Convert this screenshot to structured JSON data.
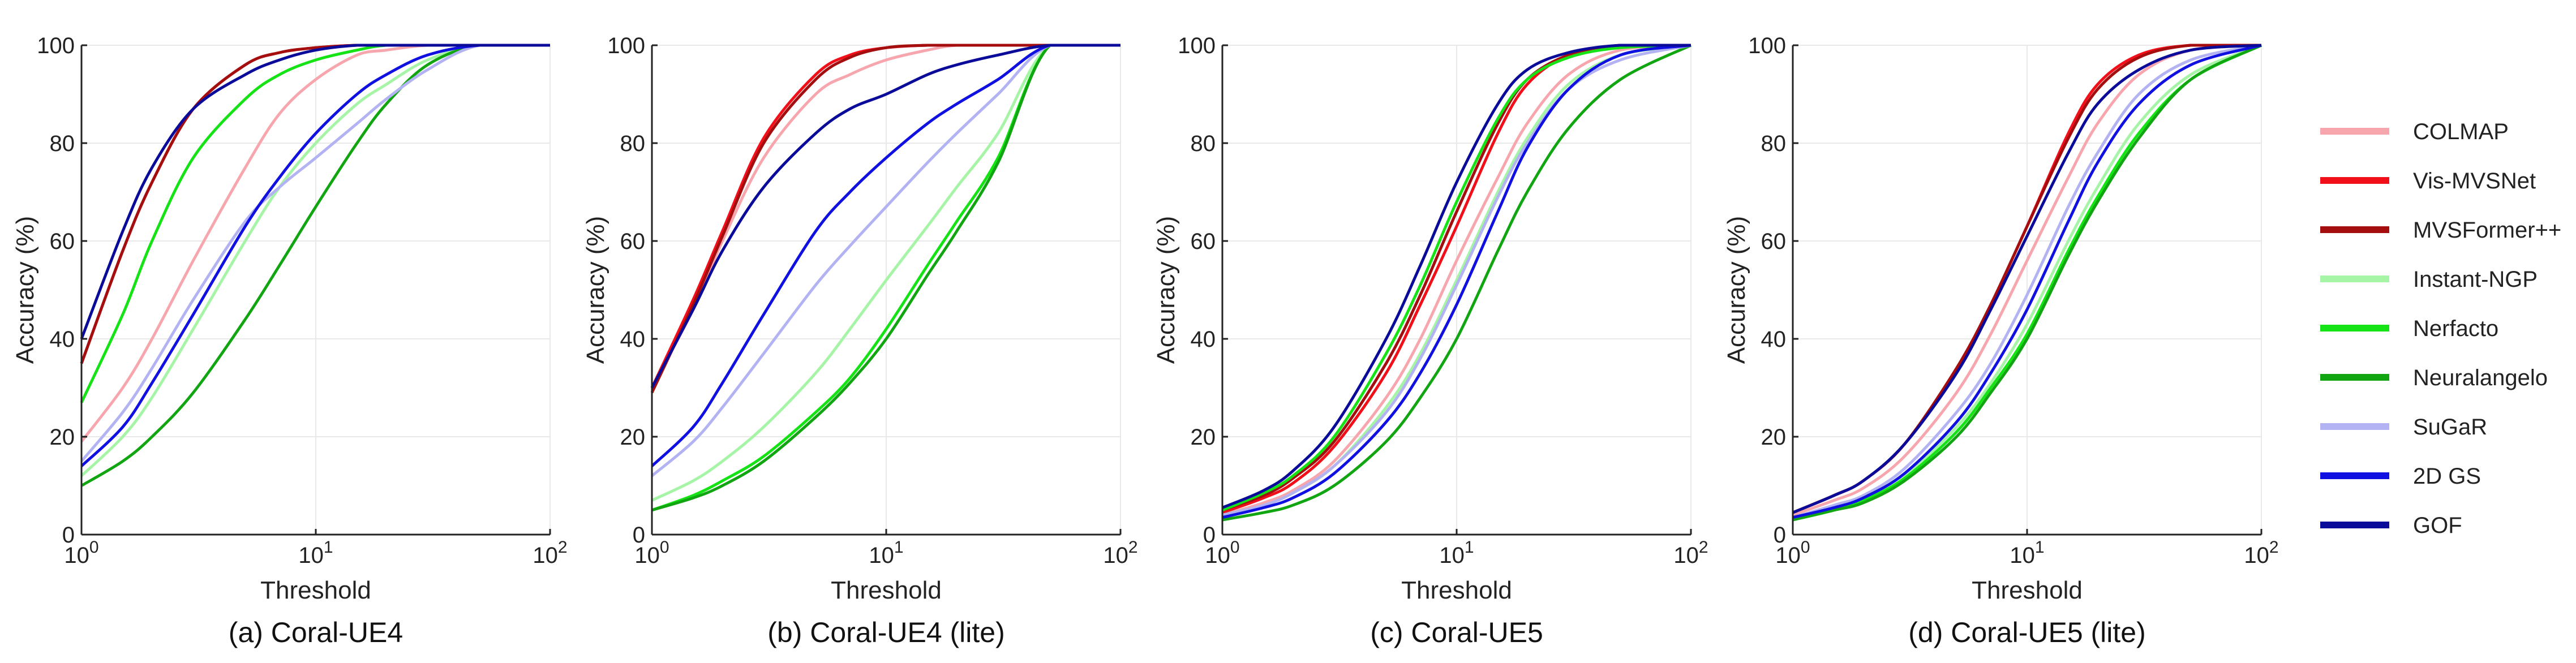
{
  "chart_data": [
    {
      "type": "line",
      "title": "(a) Coral-UE4",
      "xlabel": "Threshold",
      "ylabel": "Accuracy (%)",
      "xscale": "log",
      "xlim": [
        1,
        100
      ],
      "ylim": [
        0,
        100
      ],
      "xticks": [
        "10^0",
        "10^1",
        "10^2"
      ],
      "yticks": [
        0,
        20,
        40,
        60,
        80,
        100
      ],
      "x": [
        1,
        1.5,
        2,
        3,
        5,
        7,
        10,
        15,
        20,
        30,
        50,
        100
      ],
      "series": [
        {
          "name": "COLMAP",
          "values": [
            19,
            30,
            40,
            56,
            75,
            86,
            93,
            98,
            99,
            100,
            100,
            100
          ]
        },
        {
          "name": "Vis-MVSNet",
          "values": [
            35,
            58,
            72,
            87,
            96,
            98.5,
            99.5,
            100,
            100,
            100,
            100,
            100
          ]
        },
        {
          "name": "MVSFormer++",
          "values": [
            35,
            58,
            72,
            87,
            96,
            98.5,
            99.5,
            100,
            100,
            100,
            100,
            100
          ]
        },
        {
          "name": "Instant-NGP",
          "values": [
            12,
            20,
            28,
            42,
            60,
            71,
            80,
            88,
            92,
            97,
            100,
            100
          ]
        },
        {
          "name": "Nerfacto",
          "values": [
            27,
            45,
            60,
            77,
            89,
            94,
            97,
            99,
            100,
            100,
            100,
            100
          ]
        },
        {
          "name": "Neuralangelo",
          "values": [
            10,
            15,
            20,
            29,
            44,
            55,
            67,
            80,
            88,
            96,
            100,
            100
          ]
        },
        {
          "name": "SuGaR",
          "values": [
            15,
            25,
            34,
            48,
            64,
            71,
            77,
            84,
            89,
            95,
            100,
            100
          ]
        },
        {
          "name": "2D GS",
          "values": [
            14,
            22,
            31,
            45,
            63,
            73,
            82,
            90,
            94,
            98,
            100,
            100
          ]
        },
        {
          "name": "GOF",
          "values": [
            40,
            62,
            75,
            87,
            94,
            97,
            99,
            100,
            100,
            100,
            100,
            100
          ]
        }
      ]
    },
    {
      "type": "line",
      "title": "(b) Coral-UE4 (lite)",
      "xlabel": "Threshold",
      "ylabel": "Accuracy (%)",
      "xscale": "log",
      "xlim": [
        1,
        100
      ],
      "ylim": [
        0,
        100
      ],
      "xticks": [
        "10^0",
        "10^1",
        "10^2"
      ],
      "yticks": [
        0,
        20,
        40,
        60,
        80,
        100
      ],
      "x": [
        1,
        1.5,
        2,
        3,
        5,
        7,
        10,
        15,
        20,
        30,
        50,
        100
      ],
      "series": [
        {
          "name": "COLMAP",
          "values": [
            30,
            46,
            60,
            77,
            90,
            94,
            97,
            99,
            100,
            100,
            100,
            100
          ]
        },
        {
          "name": "Vis-MVSNet",
          "values": [
            30,
            48,
            62,
            81,
            94,
            98,
            99.5,
            100,
            100,
            100,
            100,
            100
          ]
        },
        {
          "name": "MVSFormer++",
          "values": [
            29,
            47,
            61,
            80,
            93,
            97.5,
            99.5,
            100,
            100,
            100,
            100,
            100
          ]
        },
        {
          "name": "Instant-NGP",
          "values": [
            7,
            11,
            15,
            22,
            33,
            42,
            52,
            63,
            71,
            82,
            100,
            100
          ]
        },
        {
          "name": "Nerfacto",
          "values": [
            5,
            8,
            11,
            16,
            25,
            32,
            42,
            55,
            64,
            77,
            100,
            100
          ]
        },
        {
          "name": "Neuralangelo",
          "values": [
            5,
            7.5,
            10,
            15,
            24,
            31,
            40,
            53,
            62,
            76,
            100,
            100
          ]
        },
        {
          "name": "SuGaR",
          "values": [
            12,
            19,
            26,
            37,
            51,
            59,
            67,
            76,
            82,
            90,
            100,
            100
          ]
        },
        {
          "name": "2D GS",
          "values": [
            14,
            22,
            31,
            45,
            62,
            70,
            77,
            84,
            88,
            93,
            100,
            100
          ]
        },
        {
          "name": "GOF",
          "values": [
            30,
            46,
            58,
            71,
            82,
            87,
            90,
            94,
            96,
            98,
            100,
            100
          ]
        }
      ]
    },
    {
      "type": "line",
      "title": "(c) Coral-UE5",
      "xlabel": "Threshold",
      "ylabel": "Accuracy (%)",
      "xscale": "log",
      "xlim": [
        1,
        100
      ],
      "ylim": [
        0,
        100
      ],
      "xticks": [
        "10^0",
        "10^1",
        "10^2"
      ],
      "yticks": [
        0,
        20,
        40,
        60,
        80,
        100
      ],
      "x": [
        1,
        1.5,
        2,
        3,
        5,
        7,
        10,
        15,
        20,
        30,
        50,
        100
      ],
      "series": [
        {
          "name": "COLMAP",
          "values": [
            4,
            6.5,
            9,
            15,
            28,
            40,
            56,
            73,
            84,
            94,
            99,
            100
          ]
        },
        {
          "name": "Vis-MVSNet",
          "values": [
            4.5,
            7.5,
            10.5,
            18,
            33,
            47,
            63,
            82,
            92,
            98,
            100,
            100
          ]
        },
        {
          "name": "MVSFormer++",
          "values": [
            5,
            8,
            11.5,
            19,
            35,
            49,
            66,
            84,
            93,
            98,
            100,
            100
          ]
        },
        {
          "name": "Instant-NGP",
          "values": [
            4,
            6,
            8.5,
            14,
            26,
            37,
            52,
            70,
            81,
            92,
            98,
            100
          ]
        },
        {
          "name": "Nerfacto",
          "values": [
            5,
            8.5,
            12,
            20,
            37,
            51,
            68,
            85,
            93,
            97.5,
            99.5,
            100
          ]
        },
        {
          "name": "Neuralangelo",
          "values": [
            3,
            4.5,
            6,
            10,
            19,
            28,
            40,
            58,
            70,
            83,
            93,
            100
          ]
        },
        {
          "name": "SuGaR",
          "values": [
            4,
            6,
            8.5,
            14,
            25,
            36,
            51,
            69,
            80,
            91,
            97,
            100
          ]
        },
        {
          "name": "2D GS",
          "values": [
            3.5,
            5.5,
            7.5,
            12.5,
            23,
            33,
            47,
            66,
            79,
            91,
            98,
            100
          ]
        },
        {
          "name": "GOF",
          "values": [
            5.5,
            9,
            13,
            22,
            40,
            55,
            72,
            88,
            95,
            98.5,
            100,
            100
          ]
        }
      ]
    },
    {
      "type": "line",
      "title": "(d) Coral-UE5 (lite)",
      "xlabel": "Threshold",
      "ylabel": "Accuracy (%)",
      "xscale": "log",
      "xlim": [
        1,
        100
      ],
      "ylim": [
        0,
        100
      ],
      "xticks": [
        "10^0",
        "10^1",
        "10^2"
      ],
      "yticks": [
        0,
        20,
        40,
        60,
        80,
        100
      ],
      "x": [
        1,
        1.5,
        2,
        3,
        5,
        7,
        10,
        15,
        20,
        30,
        50,
        100
      ],
      "series": [
        {
          "name": "COLMAP",
          "values": [
            4,
            7,
            9.5,
            16,
            29,
            41,
            56,
            73,
            84,
            94,
            99,
            100
          ]
        },
        {
          "name": "Vis-MVSNet",
          "values": [
            4.5,
            8,
            11,
            18.5,
            34,
            47,
            63,
            82,
            92,
            98,
            100,
            100
          ]
        },
        {
          "name": "MVSFormer++",
          "values": [
            4.5,
            8,
            11,
            18.5,
            34,
            47,
            63,
            81,
            91,
            97.5,
            100,
            100
          ]
        },
        {
          "name": "Instant-NGP",
          "values": [
            3,
            5,
            7,
            12,
            22,
            31,
            43,
            60,
            71,
            84,
            94,
            100
          ]
        },
        {
          "name": "Nerfacto",
          "values": [
            3,
            5,
            7,
            11.5,
            21,
            30,
            41,
            58,
            69,
            82,
            93,
            100
          ]
        },
        {
          "name": "Neuralangelo",
          "values": [
            3,
            5,
            6.5,
            11,
            20,
            29,
            40,
            57,
            68,
            81,
            93,
            100
          ]
        },
        {
          "name": "SuGaR",
          "values": [
            3.5,
            6,
            8,
            13.5,
            25,
            35,
            49,
            67,
            78,
            90,
            97,
            100
          ]
        },
        {
          "name": "2D GS",
          "values": [
            3.5,
            5.5,
            7.5,
            12.5,
            23,
            33,
            46,
            64,
            76,
            88,
            96,
            100
          ]
        },
        {
          "name": "GOF",
          "values": [
            4.5,
            8,
            11,
            18.5,
            33,
            46,
            61,
            78,
            88,
            95,
            99,
            100
          ]
        }
      ]
    }
  ],
  "legend": [
    {
      "name": "COLMAP",
      "color": "#f7a6ad"
    },
    {
      "name": "Vis-MVSNet",
      "color": "#f10f1a"
    },
    {
      "name": "MVSFormer++",
      "color": "#a50e0e"
    },
    {
      "name": "Instant-NGP",
      "color": "#a6f4a6"
    },
    {
      "name": "Nerfacto",
      "color": "#16e316"
    },
    {
      "name": "Neuralangelo",
      "color": "#11a611"
    },
    {
      "name": "SuGaR",
      "color": "#b3b3f3"
    },
    {
      "name": "2D GS",
      "color": "#1010e0"
    },
    {
      "name": "GOF",
      "color": "#0b0b9a"
    }
  ]
}
